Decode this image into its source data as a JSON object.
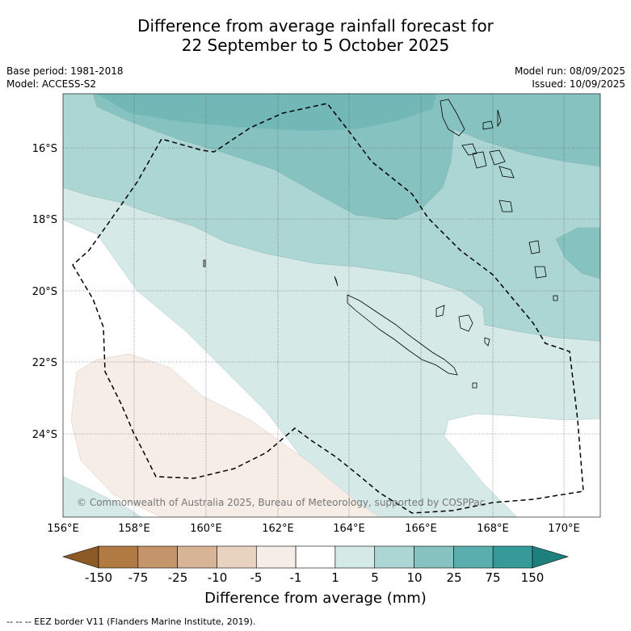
{
  "title": {
    "line1": "Difference from average rainfall forecast for",
    "line2": "22 September to 5 October 2025"
  },
  "meta": {
    "base_period": "Base period: 1981-2018",
    "model": "Model: ACCESS-S2",
    "model_run": "Model run: 08/09/2025",
    "issued": "Issued: 10/09/2025"
  },
  "map": {
    "lat_labels": [
      "16°S",
      "18°S",
      "20°S",
      "22°S",
      "24°S"
    ],
    "lon_labels": [
      "156°E",
      "158°E",
      "160°E",
      "162°E",
      "164°E",
      "166°E",
      "168°E",
      "170°E"
    ],
    "copyright": "© Commonwealth of Australia 2025, Bureau of Meteorology, supported by COSPPac"
  },
  "colorbar": {
    "title": "Difference from average (mm)",
    "ticks": [
      "-150",
      "-75",
      "-25",
      "-10",
      "-5",
      "-1",
      "1",
      "5",
      "10",
      "25",
      "75",
      "150"
    ],
    "colors": [
      "#8c5a24",
      "#b07a42",
      "#c4956a",
      "#d7b496",
      "#e8d3c0",
      "#f5ede6",
      "#ffffff",
      "#d5e9e7",
      "#acd6d4",
      "#86c2c0",
      "#5aaeae",
      "#359a98",
      "#1f7f7c"
    ]
  },
  "legend": {
    "eez_note": "--  --  -- EEZ border V11 (Flanders Marine Institute, 2019)."
  }
}
